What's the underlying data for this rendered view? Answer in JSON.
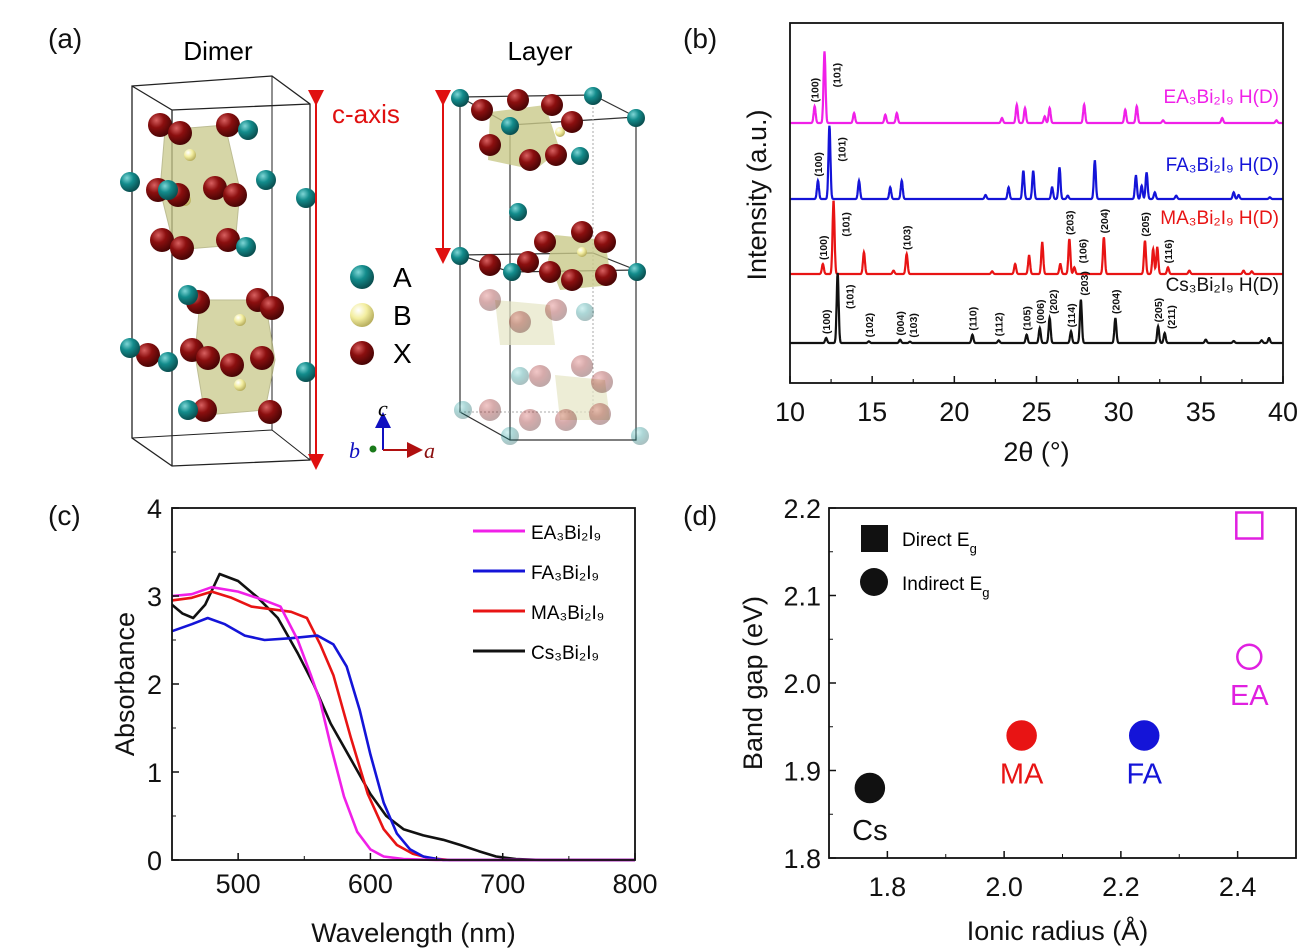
{
  "panel_labels": {
    "a": "(a)",
    "b": "(b)",
    "c": "(c)",
    "d": "(d)"
  },
  "structure": {
    "dimer_title": "Dimer",
    "layer_title": "Layer",
    "c_axis_label": "c-axis",
    "legend": [
      {
        "symbol": "A",
        "color": "#138c8c"
      },
      {
        "symbol": "B",
        "color": "#f3eea0"
      },
      {
        "symbol": "X",
        "color": "#8b0f0f"
      }
    ],
    "axes": {
      "c": "c",
      "b": "b",
      "a": "a"
    },
    "colors": {
      "octahedron": "#c9c98a",
      "axis_arrow": "#e01010"
    }
  },
  "chart_data": [
    {
      "id": "b",
      "type": "line",
      "xlabel": "2θ (°)",
      "ylabel": "Intensity (a.u.)",
      "xlim": [
        10,
        40
      ],
      "xticks": [
        10,
        15,
        20,
        25,
        30,
        35,
        40
      ],
      "yticks": [],
      "grid": false,
      "series": [
        {
          "name": "EA₃Bi₂I₉ H(D)",
          "color": "#f020e8",
          "peaks": [
            [
              11.5,
              50
            ],
            [
              12.1,
              215
            ],
            [
              13.9,
              30
            ],
            [
              15.8,
              25
            ],
            [
              16.5,
              30
            ],
            [
              22.9,
              15
            ],
            [
              23.8,
              55
            ],
            [
              24.3,
              45
            ],
            [
              25.5,
              20
            ],
            [
              25.8,
              45
            ],
            [
              27.9,
              55
            ],
            [
              30.4,
              40
            ],
            [
              31.1,
              50
            ],
            [
              32.7,
              8
            ],
            [
              36.3,
              15
            ],
            [
              39.6,
              8
            ]
          ],
          "annotations": [
            {
              "label": "(100)",
              "x": 11.5
            },
            {
              "label": "(101)",
              "x": 12.1
            }
          ]
        },
        {
          "name": "FA₃Bi₂I₉ H(D)",
          "color": "#1414d8",
          "peaks": [
            [
              11.7,
              55
            ],
            [
              12.4,
              220
            ],
            [
              14.2,
              55
            ],
            [
              16.1,
              35
            ],
            [
              16.8,
              55
            ],
            [
              21.9,
              12
            ],
            [
              23.3,
              35
            ],
            [
              24.2,
              85
            ],
            [
              24.8,
              85
            ],
            [
              25.95,
              35
            ],
            [
              26.4,
              95
            ],
            [
              26.9,
              10
            ],
            [
              28.55,
              115
            ],
            [
              31.05,
              70
            ],
            [
              31.4,
              40
            ],
            [
              31.7,
              80
            ],
            [
              32.2,
              20
            ],
            [
              33.5,
              10
            ],
            [
              37.0,
              20
            ],
            [
              37.3,
              12
            ],
            [
              39.2,
              5
            ]
          ],
          "annotations": [
            {
              "label": "(100)",
              "x": 11.7
            },
            {
              "label": "(101)",
              "x": 12.4
            }
          ]
        },
        {
          "name": "MA₃Bi₂I₉ H(D)",
          "color": "#e81414",
          "peaks": [
            [
              12.0,
              30
            ],
            [
              12.65,
              220
            ],
            [
              14.5,
              65
            ],
            [
              16.3,
              10
            ],
            [
              17.1,
              60
            ],
            [
              22.3,
              8
            ],
            [
              23.7,
              30
            ],
            [
              24.55,
              55
            ],
            [
              25.35,
              95
            ],
            [
              26.45,
              30
            ],
            [
              27.0,
              105
            ],
            [
              27.3,
              20
            ],
            [
              29.1,
              110
            ],
            [
              31.6,
              100
            ],
            [
              32.1,
              75
            ],
            [
              32.35,
              80
            ],
            [
              33.0,
              20
            ],
            [
              34.3,
              10
            ],
            [
              37.6,
              10
            ],
            [
              38.1,
              8
            ]
          ],
          "annotations": [
            {
              "label": "(100)",
              "x": 12.0
            },
            {
              "label": "(101)",
              "x": 12.65
            },
            {
              "label": "(103)",
              "x": 17.1
            },
            {
              "label": "(203)",
              "x": 27.0
            },
            {
              "label": "(106)",
              "x": 27.3
            },
            {
              "label": "(204)",
              "x": 29.1
            },
            {
              "label": "(205)",
              "x": 31.6
            },
            {
              "label": "(116)",
              "x": 33.0
            }
          ]
        },
        {
          "name": "Cs₃Bi₂I₉ H(D)",
          "color": "#111111",
          "peaks": [
            [
              12.2,
              15
            ],
            [
              12.9,
              210
            ],
            [
              14.8,
              5
            ],
            [
              16.7,
              10
            ],
            [
              17.3,
              4
            ],
            [
              21.1,
              25
            ],
            [
              22.7,
              8
            ],
            [
              24.4,
              25
            ],
            [
              25.2,
              45
            ],
            [
              25.8,
              75
            ],
            [
              27.1,
              35
            ],
            [
              27.7,
              130
            ],
            [
              29.8,
              75
            ],
            [
              32.4,
              50
            ],
            [
              32.8,
              30
            ],
            [
              35.3,
              10
            ],
            [
              37.0,
              6
            ],
            [
              38.7,
              8
            ],
            [
              39.15,
              15
            ]
          ],
          "annotations": [
            {
              "label": "(100)",
              "x": 12.2
            },
            {
              "label": "(101)",
              "x": 12.9
            },
            {
              "label": "(102)",
              "x": 14.8
            },
            {
              "label": "(004)",
              "x": 16.7
            },
            {
              "label": "(103)",
              "x": 17.3
            },
            {
              "label": "(110)",
              "x": 21.1
            },
            {
              "label": "(112)",
              "x": 22.7
            },
            {
              "label": "(105)",
              "x": 24.4
            },
            {
              "label": "(006)",
              "x": 25.2
            },
            {
              "label": "(202)",
              "x": 25.8
            },
            {
              "label": "(114)",
              "x": 27.1
            },
            {
              "label": "(203)",
              "x": 27.7
            },
            {
              "label": "(204)",
              "x": 29.8
            },
            {
              "label": "(205)",
              "x": 32.4
            },
            {
              "label": "(211)",
              "x": 32.8
            }
          ]
        }
      ]
    },
    {
      "id": "c",
      "type": "line",
      "xlabel": "Wavelength (nm)",
      "ylabel": "Absorbance",
      "xlim": [
        450,
        800
      ],
      "ylim": [
        0,
        4
      ],
      "xticks": [
        500,
        600,
        700,
        800
      ],
      "yticks": [
        0,
        1,
        2,
        3,
        4
      ],
      "grid": false,
      "legend_position": "top-right",
      "series": [
        {
          "name": "EA₃Bi₂I₉",
          "color": "#f020e8",
          "points": [
            [
              450,
              3.0
            ],
            [
              465,
              3.02
            ],
            [
              480,
              3.1
            ],
            [
              500,
              3.05
            ],
            [
              520,
              2.95
            ],
            [
              532,
              2.88
            ],
            [
              545,
              2.5
            ],
            [
              555,
              2.1
            ],
            [
              562,
              1.8
            ],
            [
              570,
              1.3
            ],
            [
              580,
              0.72
            ],
            [
              590,
              0.32
            ],
            [
              600,
              0.12
            ],
            [
              610,
              0.04
            ],
            [
              625,
              0.01
            ],
            [
              650,
              0
            ],
            [
              800,
              0
            ]
          ]
        },
        {
          "name": "FA₃Bi₂I₉",
          "color": "#1414d8",
          "points": [
            [
              450,
              2.6
            ],
            [
              465,
              2.68
            ],
            [
              477,
              2.75
            ],
            [
              490,
              2.68
            ],
            [
              505,
              2.55
            ],
            [
              520,
              2.5
            ],
            [
              540,
              2.52
            ],
            [
              560,
              2.55
            ],
            [
              572,
              2.45
            ],
            [
              582,
              2.2
            ],
            [
              592,
              1.7
            ],
            [
              600,
              1.2
            ],
            [
              610,
              0.65
            ],
            [
              620,
              0.3
            ],
            [
              630,
              0.12
            ],
            [
              640,
              0.04
            ],
            [
              655,
              0
            ],
            [
              800,
              0
            ]
          ]
        },
        {
          "name": "MA₃Bi₂I₉",
          "color": "#e81414",
          "points": [
            [
              450,
              2.95
            ],
            [
              465,
              2.98
            ],
            [
              480,
              3.05
            ],
            [
              495,
              2.98
            ],
            [
              510,
              2.88
            ],
            [
              525,
              2.85
            ],
            [
              540,
              2.82
            ],
            [
              552,
              2.75
            ],
            [
              562,
              2.45
            ],
            [
              572,
              2.1
            ],
            [
              585,
              1.4
            ],
            [
              598,
              0.75
            ],
            [
              610,
              0.35
            ],
            [
              620,
              0.17
            ],
            [
              632,
              0.07
            ],
            [
              645,
              0.02
            ],
            [
              660,
              0
            ],
            [
              800,
              0
            ]
          ]
        },
        {
          "name": "Cs₃Bi₂I₉",
          "color": "#111111",
          "points": [
            [
              450,
              2.9
            ],
            [
              458,
              2.8
            ],
            [
              466,
              2.75
            ],
            [
              475,
              2.9
            ],
            [
              486,
              3.25
            ],
            [
              500,
              3.17
            ],
            [
              515,
              2.98
            ],
            [
              530,
              2.75
            ],
            [
              545,
              2.35
            ],
            [
              557,
              2.0
            ],
            [
              570,
              1.55
            ],
            [
              585,
              1.15
            ],
            [
              600,
              0.75
            ],
            [
              612,
              0.5
            ],
            [
              625,
              0.35
            ],
            [
              640,
              0.28
            ],
            [
              655,
              0.23
            ],
            [
              668,
              0.17
            ],
            [
              682,
              0.1
            ],
            [
              695,
              0.04
            ],
            [
              710,
              0.01
            ],
            [
              730,
              0
            ],
            [
              800,
              0
            ]
          ]
        }
      ]
    },
    {
      "id": "d",
      "type": "scatter",
      "xlabel": "Ionic radius (Å)",
      "ylabel": "Band gap (eV)",
      "xlim": [
        1.7,
        2.5
      ],
      "ylim": [
        1.8,
        2.2
      ],
      "xticks": [
        "1.8",
        "2.0",
        "2.2",
        "2.4"
      ],
      "yticks": [
        "1.8",
        "1.9",
        "2.0",
        "2.1",
        "2.2"
      ],
      "grid": false,
      "legend_position": "top-left",
      "legend": [
        {
          "text": "Direct E",
          "sub": "g",
          "marker": "square"
        },
        {
          "text": "Indirect E",
          "sub": "g",
          "marker": "circle"
        }
      ],
      "points": [
        {
          "label": "Cs",
          "x": 1.77,
          "y": 1.88,
          "type": "indirect",
          "color": "#111111",
          "filled": true
        },
        {
          "label": "MA",
          "x": 2.03,
          "y": 1.94,
          "type": "indirect",
          "color": "#e81414",
          "filled": true
        },
        {
          "label": "FA",
          "x": 2.24,
          "y": 1.94,
          "type": "indirect",
          "color": "#1414d8",
          "filled": true
        },
        {
          "label": "EA",
          "x": 2.42,
          "y": 2.03,
          "type": "indirect",
          "color": "#e020e0",
          "filled": false
        },
        {
          "label": "",
          "x": 2.42,
          "y": 2.18,
          "type": "direct",
          "color": "#e020e0",
          "filled": false
        }
      ]
    }
  ]
}
